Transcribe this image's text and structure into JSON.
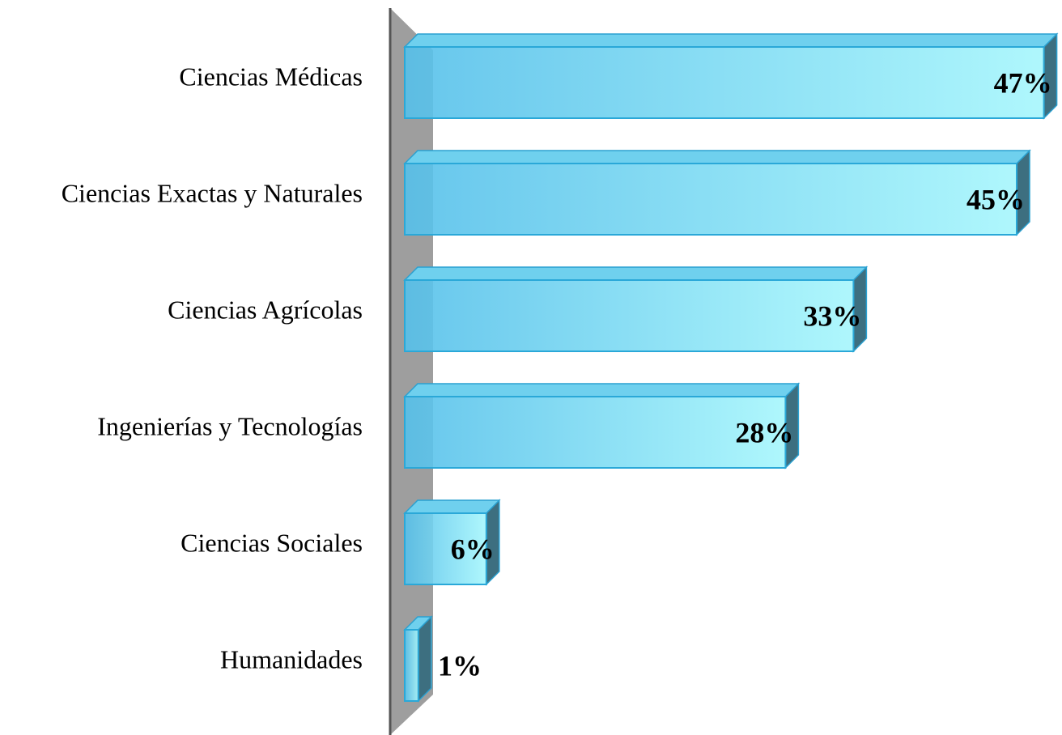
{
  "chart_data": {
    "type": "bar",
    "orientation": "horizontal",
    "categories": [
      "Ciencias Médicas",
      "Ciencias Exactas y Naturales",
      "Ciencias Agrícolas",
      "Ingenierías y Tecnologías",
      "Ciencias Sociales",
      "Humanidades"
    ],
    "values": [
      47,
      45,
      33,
      28,
      6,
      1
    ],
    "value_labels": [
      "47%",
      "45%",
      "33%",
      "28%",
      "6%",
      "1%"
    ],
    "color": "#5cc8f0"
  }
}
